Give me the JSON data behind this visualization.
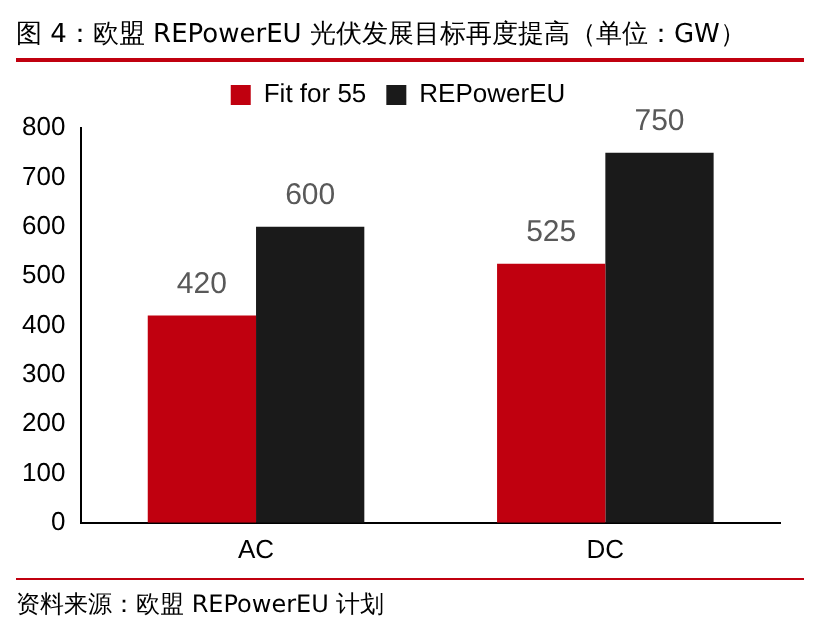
{
  "chart_data": {
    "type": "bar",
    "title": "图 4：欧盟 REPowerEU 光伏发展目标再度提高（单位：GW）",
    "categories": [
      "AC",
      "DC"
    ],
    "series": [
      {
        "name": "Fit for 55",
        "color": "#c0000f",
        "values": [
          420,
          525
        ]
      },
      {
        "name": "REPowerEU",
        "color": "#1a1a1a",
        "values": [
          600,
          750
        ]
      }
    ],
    "ylim": [
      0,
      800
    ],
    "yticks": [
      0,
      100,
      200,
      300,
      400,
      500,
      600,
      700,
      800
    ],
    "grid": false,
    "legend": "top",
    "data_labels": true,
    "annotations": [
      "资料来源：欧盟 REPowerEU 计划"
    ]
  }
}
